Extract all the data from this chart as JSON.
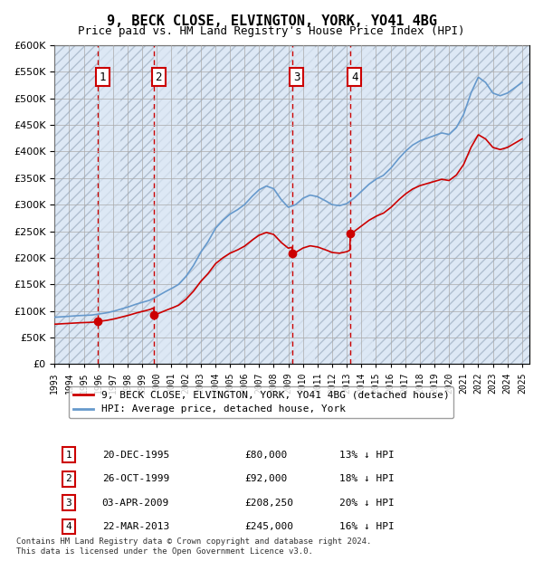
{
  "title1": "9, BECK CLOSE, ELVINGTON, YORK, YO41 4BG",
  "title2": "Price paid vs. HM Land Registry's House Price Index (HPI)",
  "ylabel": "",
  "ylim": [
    0,
    600000
  ],
  "yticks": [
    0,
    50000,
    100000,
    150000,
    200000,
    250000,
    300000,
    350000,
    400000,
    450000,
    500000,
    550000,
    600000
  ],
  "sale_dates": [
    "1995-12-20",
    "1999-10-26",
    "2009-04-03",
    "2013-03-22"
  ],
  "sale_prices": [
    80000,
    92000,
    208250,
    245000
  ],
  "sale_labels": [
    "1",
    "2",
    "3",
    "4"
  ],
  "sale_info": [
    {
      "label": "1",
      "date": "20-DEC-1995",
      "price": "£80,000",
      "hpi": "13% ↓ HPI"
    },
    {
      "label": "2",
      "date": "26-OCT-1999",
      "price": "£92,000",
      "hpi": "18% ↓ HPI"
    },
    {
      "label": "3",
      "date": "03-APR-2009",
      "price": "£208,250",
      "hpi": "20% ↓ HPI"
    },
    {
      "label": "4",
      "date": "22-MAR-2013",
      "price": "£245,000",
      "hpi": "16% ↓ HPI"
    }
  ],
  "legend_line1": "9, BECK CLOSE, ELVINGTON, YORK, YO41 4BG (detached house)",
  "legend_line2": "HPI: Average price, detached house, York",
  "footer": "Contains HM Land Registry data © Crown copyright and database right 2024.\nThis data is licensed under the Open Government Licence v3.0.",
  "sale_color": "#cc0000",
  "hpi_color": "#6699cc",
  "background_hatch_color": "#d0d8e8",
  "shade_color": "#dde8f5",
  "dashed_red": "#cc0000"
}
